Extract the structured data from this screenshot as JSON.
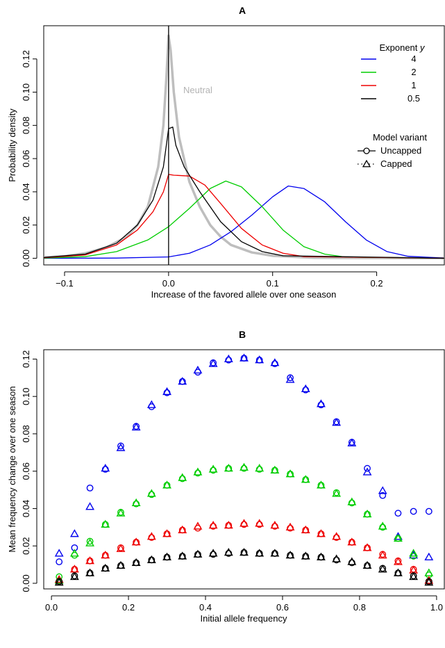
{
  "chart_data": [
    {
      "panel": "A",
      "type": "line",
      "title": "A",
      "xlabel": "Increase of the favored allele over one season",
      "ylabel": "Probability density",
      "xlim": [
        -0.12,
        0.265
      ],
      "ylim": [
        -0.004,
        0.14
      ],
      "xticks": [
        -0.1,
        0.0,
        0.1,
        0.2
      ],
      "xtick_labels": [
        "−0.1",
        "0.0",
        "0.1",
        "0.2"
      ],
      "yticks": [
        0.0,
        0.02,
        0.04,
        0.06,
        0.08,
        0.1,
        0.12
      ],
      "ytick_labels": [
        "0.00",
        "0.02",
        "0.04",
        "0.06",
        "0.08",
        "0.10",
        "0.12"
      ],
      "vline_x": 0,
      "neutral_label": "Neutral",
      "legend_exponent": {
        "title": "Exponent y",
        "title_text": "Exponent ",
        "title_var": "y",
        "entries": [
          {
            "label": "4",
            "color": "#0000ee"
          },
          {
            "label": "2",
            "color": "#00cd00"
          },
          {
            "label": "1",
            "color": "#ee0000"
          },
          {
            "label": "0.5",
            "color": "#000000"
          }
        ]
      },
      "legend_variant": {
        "title": "Model variant",
        "entries": [
          {
            "label": "Uncapped",
            "marker": "circle"
          },
          {
            "label": "Capped",
            "marker": "triangle"
          }
        ]
      },
      "series": [
        {
          "name": "Neutral",
          "color": "#bebebe",
          "width": 3.5,
          "points": [
            [
              -0.12,
              0.0005
            ],
            [
              -0.1,
              0.0012
            ],
            [
              -0.08,
              0.003
            ],
            [
              -0.06,
              0.0065
            ],
            [
              -0.04,
              0.013
            ],
            [
              -0.03,
              0.02
            ],
            [
              -0.02,
              0.031
            ],
            [
              -0.01,
              0.055
            ],
            [
              -0.005,
              0.08
            ],
            [
              -0.002,
              0.11
            ],
            [
              0.0,
              0.134
            ],
            [
              0.002,
              0.125
            ],
            [
              0.005,
              0.1
            ],
            [
              0.01,
              0.073
            ],
            [
              0.02,
              0.046
            ],
            [
              0.03,
              0.031
            ],
            [
              0.04,
              0.02
            ],
            [
              0.05,
              0.013
            ],
            [
              0.06,
              0.008
            ],
            [
              0.08,
              0.0035
            ],
            [
              0.1,
              0.0015
            ],
            [
              0.14,
              0.0003
            ],
            [
              0.265,
              0.0
            ]
          ]
        },
        {
          "name": "4",
          "color": "#0000ee",
          "width": 1.3,
          "points": [
            [
              -0.12,
              0.0
            ],
            [
              -0.05,
              0.0001
            ],
            [
              0.0,
              0.0008
            ],
            [
              0.02,
              0.003
            ],
            [
              0.04,
              0.008
            ],
            [
              0.06,
              0.016
            ],
            [
              0.08,
              0.026
            ],
            [
              0.1,
              0.037
            ],
            [
              0.115,
              0.0435
            ],
            [
              0.13,
              0.042
            ],
            [
              0.15,
              0.034
            ],
            [
              0.17,
              0.022
            ],
            [
              0.19,
              0.011
            ],
            [
              0.21,
              0.004
            ],
            [
              0.23,
              0.0012
            ],
            [
              0.265,
              0.0001
            ]
          ]
        },
        {
          "name": "2",
          "color": "#00cd00",
          "width": 1.3,
          "points": [
            [
              -0.12,
              0.0001
            ],
            [
              -0.08,
              0.001
            ],
            [
              -0.05,
              0.004
            ],
            [
              -0.02,
              0.011
            ],
            [
              0.0,
              0.019
            ],
            [
              0.02,
              0.03
            ],
            [
              0.04,
              0.042
            ],
            [
              0.055,
              0.0465
            ],
            [
              0.07,
              0.043
            ],
            [
              0.09,
              0.031
            ],
            [
              0.11,
              0.017
            ],
            [
              0.13,
              0.007
            ],
            [
              0.15,
              0.0025
            ],
            [
              0.17,
              0.0007
            ],
            [
              0.265,
              0.0
            ]
          ]
        },
        {
          "name": "1",
          "color": "#ee0000",
          "width": 1.3,
          "points": [
            [
              -0.12,
              0.0003
            ],
            [
              -0.08,
              0.002
            ],
            [
              -0.05,
              0.008
            ],
            [
              -0.03,
              0.017
            ],
            [
              -0.015,
              0.028
            ],
            [
              -0.005,
              0.04
            ],
            [
              0.0,
              0.0505
            ],
            [
              0.005,
              0.05
            ],
            [
              0.02,
              0.0495
            ],
            [
              0.035,
              0.044
            ],
            [
              0.05,
              0.033
            ],
            [
              0.07,
              0.018
            ],
            [
              0.09,
              0.008
            ],
            [
              0.11,
              0.003
            ],
            [
              0.13,
              0.001
            ],
            [
              0.265,
              0.0
            ]
          ]
        },
        {
          "name": "0.5",
          "color": "#000000",
          "width": 1.3,
          "points": [
            [
              -0.12,
              0.0005
            ],
            [
              -0.08,
              0.0025
            ],
            [
              -0.05,
              0.009
            ],
            [
              -0.03,
              0.02
            ],
            [
              -0.015,
              0.035
            ],
            [
              -0.005,
              0.055
            ],
            [
              0.0,
              0.078
            ],
            [
              0.004,
              0.079
            ],
            [
              0.007,
              0.068
            ],
            [
              0.015,
              0.055
            ],
            [
              0.03,
              0.04
            ],
            [
              0.05,
              0.022
            ],
            [
              0.07,
              0.01
            ],
            [
              0.09,
              0.004
            ],
            [
              0.11,
              0.0015
            ],
            [
              0.265,
              0.0
            ]
          ]
        }
      ]
    },
    {
      "panel": "B",
      "type": "scatter",
      "title": "B",
      "xlabel": "Initial allele frequency",
      "ylabel": "Mean frequency change over one season",
      "xlim": [
        -0.02,
        1.02
      ],
      "ylim": [
        -0.003,
        0.125
      ],
      "xticks": [
        0.0,
        0.2,
        0.4,
        0.6,
        0.8,
        1.0
      ],
      "xtick_labels": [
        "0.0",
        "0.2",
        "0.4",
        "0.6",
        "0.8",
        "1.0"
      ],
      "yticks": [
        0.0,
        0.02,
        0.04,
        0.06,
        0.08,
        0.1,
        0.12
      ],
      "ytick_labels": [
        "0.00",
        "0.02",
        "0.04",
        "0.06",
        "0.08",
        "0.10",
        "0.12"
      ],
      "x": [
        0.02,
        0.06,
        0.1,
        0.14,
        0.18,
        0.22,
        0.26,
        0.3,
        0.34,
        0.38,
        0.42,
        0.46,
        0.5,
        0.54,
        0.58,
        0.62,
        0.66,
        0.7,
        0.74,
        0.78,
        0.82,
        0.86,
        0.9,
        0.94,
        0.98
      ],
      "series": [
        {
          "name": "4",
          "model": "Uncapped",
          "marker": "circle",
          "color": "#0000ee",
          "values": [
            0.0115,
            0.019,
            0.051,
            0.061,
            0.0735,
            0.084,
            0.0945,
            0.102,
            0.108,
            0.113,
            0.118,
            0.1195,
            0.1205,
            0.1195,
            0.1175,
            0.11,
            0.1035,
            0.0955,
            0.0865,
            0.0755,
            0.0615,
            0.047,
            0.0375,
            0.0385,
            0.0385
          ]
        },
        {
          "name": "4",
          "model": "Capped",
          "marker": "triangle",
          "color": "#0000ee",
          "values": [
            0.016,
            0.0265,
            0.041,
            0.0615,
            0.0725,
            0.0835,
            0.0955,
            0.1025,
            0.108,
            0.114,
            0.1175,
            0.12,
            0.1205,
            0.1195,
            0.118,
            0.109,
            0.104,
            0.096,
            0.086,
            0.075,
            0.0595,
            0.0495,
            0.025,
            0.015,
            0.014
          ]
        },
        {
          "name": "2",
          "model": "Uncapped",
          "marker": "circle",
          "color": "#00cd00",
          "values": [
            0.0035,
            0.015,
            0.0225,
            0.0315,
            0.038,
            0.0425,
            0.0475,
            0.0525,
            0.056,
            0.059,
            0.0605,
            0.0615,
            0.0615,
            0.061,
            0.0605,
            0.0585,
            0.0555,
            0.0525,
            0.0485,
            0.043,
            0.037,
            0.03,
            0.024,
            0.0145,
            0.0045
          ]
        },
        {
          "name": "2",
          "model": "Capped",
          "marker": "triangle",
          "color": "#00cd00",
          "values": [
            0.0015,
            0.016,
            0.0215,
            0.0315,
            0.0375,
            0.043,
            0.048,
            0.0525,
            0.0565,
            0.0595,
            0.061,
            0.0615,
            0.062,
            0.0615,
            0.0605,
            0.0585,
            0.0555,
            0.0525,
            0.048,
            0.0435,
            0.037,
            0.0305,
            0.024,
            0.016,
            0.0055
          ]
        },
        {
          "name": "1",
          "model": "Uncapped",
          "marker": "circle",
          "color": "#ee0000",
          "values": [
            0.001,
            0.0075,
            0.012,
            0.015,
            0.019,
            0.022,
            0.0245,
            0.0265,
            0.0285,
            0.0295,
            0.0305,
            0.031,
            0.0315,
            0.0315,
            0.0305,
            0.0295,
            0.0285,
            0.0265,
            0.0245,
            0.022,
            0.019,
            0.0155,
            0.012,
            0.0075,
            0.001
          ]
        },
        {
          "name": "1",
          "model": "Capped",
          "marker": "triangle",
          "color": "#ee0000",
          "values": [
            0.002,
            0.0075,
            0.012,
            0.015,
            0.0185,
            0.022,
            0.025,
            0.0265,
            0.0285,
            0.0305,
            0.031,
            0.031,
            0.032,
            0.032,
            0.031,
            0.03,
            0.0285,
            0.0265,
            0.025,
            0.022,
            0.019,
            0.015,
            0.0115,
            0.007,
            0.0015
          ]
        },
        {
          "name": "0.5",
          "model": "Uncapped",
          "marker": "circle",
          "color": "#000000",
          "values": [
            0.001,
            0.004,
            0.0055,
            0.008,
            0.0095,
            0.011,
            0.0125,
            0.014,
            0.0145,
            0.0155,
            0.0155,
            0.016,
            0.0165,
            0.016,
            0.016,
            0.015,
            0.0145,
            0.014,
            0.0125,
            0.011,
            0.0095,
            0.008,
            0.0055,
            0.004,
            0.001
          ]
        },
        {
          "name": "0.5",
          "model": "Capped",
          "marker": "triangle",
          "color": "#000000",
          "values": [
            0.0005,
            0.0035,
            0.0055,
            0.008,
            0.0095,
            0.011,
            0.0125,
            0.014,
            0.0145,
            0.0155,
            0.016,
            0.0165,
            0.0165,
            0.016,
            0.016,
            0.015,
            0.0145,
            0.014,
            0.013,
            0.0115,
            0.0095,
            0.0075,
            0.0055,
            0.0035,
            0.0005
          ]
        }
      ]
    }
  ]
}
